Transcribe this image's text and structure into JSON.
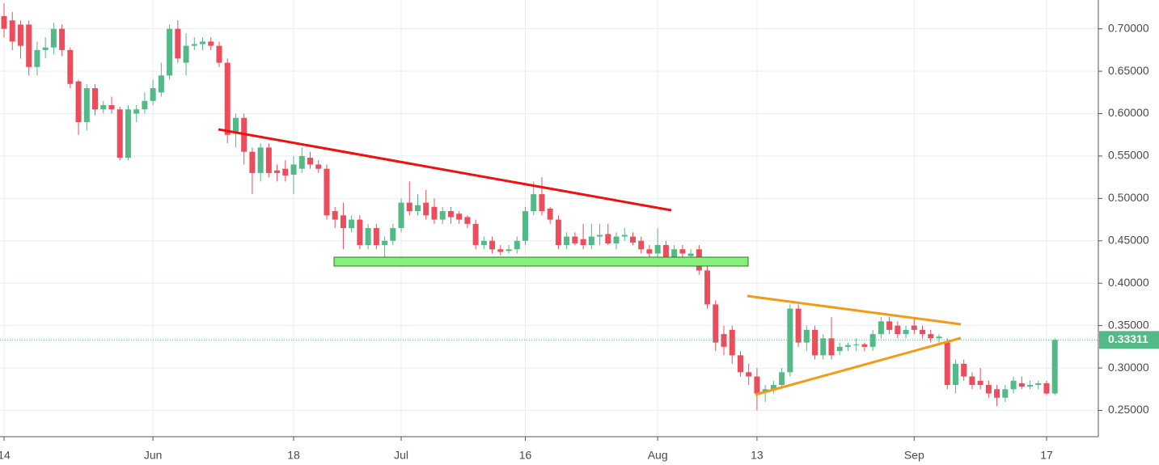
{
  "chart_data": {
    "type": "candlestick",
    "categories": [
      "14",
      null,
      null,
      null,
      null,
      null,
      null,
      null,
      null,
      null,
      null,
      null,
      null,
      null,
      null,
      null,
      null,
      null,
      "Jun",
      null,
      null,
      null,
      null,
      null,
      null,
      null,
      null,
      null,
      null,
      null,
      null,
      null,
      null,
      null,
      null,
      "18",
      null,
      null,
      null,
      null,
      null,
      null,
      null,
      null,
      null,
      null,
      null,
      null,
      "Jul",
      null,
      null,
      null,
      null,
      null,
      null,
      null,
      null,
      null,
      null,
      null,
      null,
      null,
      null,
      "16",
      null,
      null,
      null,
      null,
      null,
      null,
      null,
      null,
      null,
      null,
      null,
      null,
      null,
      null,
      null,
      "Aug",
      null,
      null,
      null,
      null,
      null,
      null,
      null,
      null,
      null,
      null,
      null,
      "13",
      null,
      null,
      null,
      null,
      null,
      null,
      null,
      null,
      null,
      null,
      null,
      null,
      null,
      null,
      null,
      null,
      null,
      null,
      "Sep",
      null,
      null,
      null,
      null,
      null,
      null,
      null,
      null,
      null,
      null,
      null,
      null,
      null,
      null,
      null,
      "17",
      null
    ],
    "open": [
      0.715,
      0.71,
      0.705,
      0.705,
      0.655,
      0.675,
      0.678,
      0.7,
      0.675,
      0.638,
      0.59,
      0.63,
      0.605,
      0.61,
      0.605,
      0.548,
      0.6,
      0.605,
      0.615,
      0.625,
      0.645,
      0.7,
      0.66,
      0.68,
      0.682,
      0.685,
      0.68,
      0.66,
      0.578,
      0.595,
      0.555,
      0.53,
      0.56,
      0.533,
      0.535,
      0.528,
      0.535,
      0.548,
      0.54,
      0.535,
      0.485,
      0.48,
      0.465,
      0.475,
      0.445,
      0.465,
      0.445,
      0.45,
      0.465,
      0.495,
      0.485,
      0.495,
      0.49,
      0.475,
      0.485,
      0.482,
      0.478,
      0.47,
      0.445,
      0.45,
      0.44,
      0.438,
      0.44,
      0.45,
      0.485,
      0.505,
      0.488,
      0.475,
      0.445,
      0.455,
      0.452,
      0.445,
      0.455,
      0.458,
      0.447,
      0.455,
      0.455,
      0.45,
      0.44,
      0.435,
      0.445,
      0.43,
      0.44,
      0.432,
      0.44,
      0.415,
      0.375,
      0.34,
      0.345,
      0.315,
      0.295,
      0.29,
      0.272,
      0.275,
      0.28,
      0.295,
      0.37,
      0.33,
      0.345,
      0.315,
      0.335,
      0.32,
      0.325,
      0.327,
      0.328,
      0.325,
      0.34,
      0.355,
      0.35,
      0.34,
      0.35,
      0.345,
      0.34,
      0.335,
      0.33,
      0.28,
      0.305,
      0.29,
      0.285,
      0.28,
      0.275,
      0.265,
      0.275,
      0.282,
      0.278,
      0.28,
      0.282,
      0.27
    ],
    "high": [
      0.73,
      0.72,
      0.71,
      0.71,
      0.685,
      0.69,
      0.707,
      0.705,
      0.678,
      0.64,
      0.635,
      0.635,
      0.615,
      0.62,
      0.608,
      0.61,
      0.61,
      0.625,
      0.64,
      0.66,
      0.705,
      0.71,
      0.695,
      0.69,
      0.69,
      0.69,
      0.685,
      0.665,
      0.6,
      0.6,
      0.56,
      0.565,
      0.565,
      0.54,
      0.545,
      0.55,
      0.56,
      0.555,
      0.545,
      0.54,
      0.49,
      0.495,
      0.48,
      0.48,
      0.47,
      0.47,
      0.455,
      0.47,
      0.5,
      0.52,
      0.505,
      0.51,
      0.5,
      0.49,
      0.49,
      0.485,
      0.48,
      0.475,
      0.455,
      0.455,
      0.445,
      0.445,
      0.455,
      0.49,
      0.52,
      0.525,
      0.49,
      0.48,
      0.46,
      0.46,
      0.47,
      0.47,
      0.47,
      0.47,
      0.46,
      0.465,
      0.46,
      0.455,
      0.445,
      0.465,
      0.45,
      0.445,
      0.445,
      0.44,
      0.445,
      0.42,
      0.38,
      0.35,
      0.35,
      0.32,
      0.305,
      0.3,
      0.28,
      0.285,
      0.3,
      0.375,
      0.375,
      0.35,
      0.35,
      0.34,
      0.36,
      0.33,
      0.33,
      0.335,
      0.33,
      0.345,
      0.36,
      0.36,
      0.355,
      0.35,
      0.36,
      0.35,
      0.345,
      0.34,
      0.335,
      0.31,
      0.31,
      0.295,
      0.3,
      0.285,
      0.28,
      0.28,
      0.29,
      0.29,
      0.285,
      0.285,
      0.285,
      0.335
    ],
    "low": [
      0.69,
      0.675,
      0.665,
      0.645,
      0.645,
      0.665,
      0.67,
      0.668,
      0.63,
      0.575,
      0.58,
      0.598,
      0.6,
      0.6,
      0.545,
      0.545,
      0.59,
      0.6,
      0.61,
      0.62,
      0.64,
      0.66,
      0.645,
      0.675,
      0.675,
      0.675,
      0.655,
      0.565,
      0.56,
      0.54,
      0.505,
      0.52,
      0.525,
      0.52,
      0.52,
      0.505,
      0.53,
      0.535,
      0.53,
      0.475,
      0.465,
      0.44,
      0.46,
      0.44,
      0.44,
      0.44,
      0.43,
      0.445,
      0.46,
      0.48,
      0.48,
      0.475,
      0.47,
      0.47,
      0.47,
      0.47,
      0.465,
      0.44,
      0.44,
      0.435,
      0.433,
      0.435,
      0.435,
      0.445,
      0.48,
      0.48,
      0.47,
      0.44,
      0.44,
      0.445,
      0.44,
      0.44,
      0.445,
      0.445,
      0.44,
      0.45,
      0.445,
      0.435,
      0.43,
      0.43,
      0.425,
      0.425,
      0.43,
      0.425,
      0.41,
      0.37,
      0.32,
      0.315,
      0.305,
      0.29,
      0.28,
      0.25,
      0.26,
      0.27,
      0.275,
      0.29,
      0.325,
      0.32,
      0.31,
      0.31,
      0.31,
      0.315,
      0.32,
      0.32,
      0.32,
      0.32,
      0.335,
      0.34,
      0.335,
      0.335,
      0.34,
      0.335,
      0.33,
      0.33,
      0.275,
      0.27,
      0.285,
      0.275,
      0.275,
      0.265,
      0.255,
      0.26,
      0.27,
      0.275,
      0.275,
      0.275,
      0.268,
      0.268
    ],
    "close": [
      0.7,
      0.685,
      0.68,
      0.655,
      0.675,
      0.678,
      0.7,
      0.675,
      0.635,
      0.59,
      0.63,
      0.605,
      0.61,
      0.605,
      0.548,
      0.605,
      0.605,
      0.615,
      0.63,
      0.645,
      0.7,
      0.665,
      0.68,
      0.682,
      0.685,
      0.68,
      0.66,
      0.575,
      0.595,
      0.555,
      0.53,
      0.56,
      0.53,
      0.53,
      0.527,
      0.54,
      0.55,
      0.54,
      0.535,
      0.48,
      0.475,
      0.465,
      0.475,
      0.445,
      0.465,
      0.445,
      0.45,
      0.465,
      0.495,
      0.485,
      0.492,
      0.48,
      0.475,
      0.485,
      0.478,
      0.475,
      0.47,
      0.445,
      0.45,
      0.44,
      0.437,
      0.44,
      0.45,
      0.485,
      0.505,
      0.485,
      0.475,
      0.445,
      0.455,
      0.447,
      0.445,
      0.455,
      0.457,
      0.447,
      0.455,
      0.457,
      0.448,
      0.44,
      0.435,
      0.445,
      0.43,
      0.44,
      0.435,
      0.435,
      0.415,
      0.375,
      0.33,
      0.325,
      0.315,
      0.295,
      0.29,
      0.27,
      0.275,
      0.28,
      0.295,
      0.37,
      0.33,
      0.345,
      0.315,
      0.335,
      0.315,
      0.325,
      0.327,
      0.328,
      0.325,
      0.34,
      0.355,
      0.345,
      0.34,
      0.345,
      0.345,
      0.34,
      0.335,
      0.337,
      0.28,
      0.305,
      0.29,
      0.28,
      0.28,
      0.27,
      0.265,
      0.275,
      0.285,
      0.278,
      0.28,
      0.282,
      0.27,
      0.33311
    ],
    "up_color": "#53b987",
    "down_color": "#eb4d5c",
    "last_price": 0.33311,
    "ylim": [
      0.219,
      0.734
    ],
    "yticks": [
      {
        "value": 0.25,
        "label": "0.25000"
      },
      {
        "value": 0.3,
        "label": "0.30000"
      },
      {
        "value": 0.35,
        "label": "0.35000"
      },
      {
        "value": 0.4,
        "label": "0.40000"
      },
      {
        "value": 0.45,
        "label": "0.45000"
      },
      {
        "value": 0.5,
        "label": "0.50000"
      },
      {
        "value": 0.55,
        "label": "0.55000"
      },
      {
        "value": 0.6,
        "label": "0.60000"
      },
      {
        "value": 0.65,
        "label": "0.65000"
      },
      {
        "value": 0.7,
        "label": "0.70000"
      }
    ],
    "grid": true
  }
}
